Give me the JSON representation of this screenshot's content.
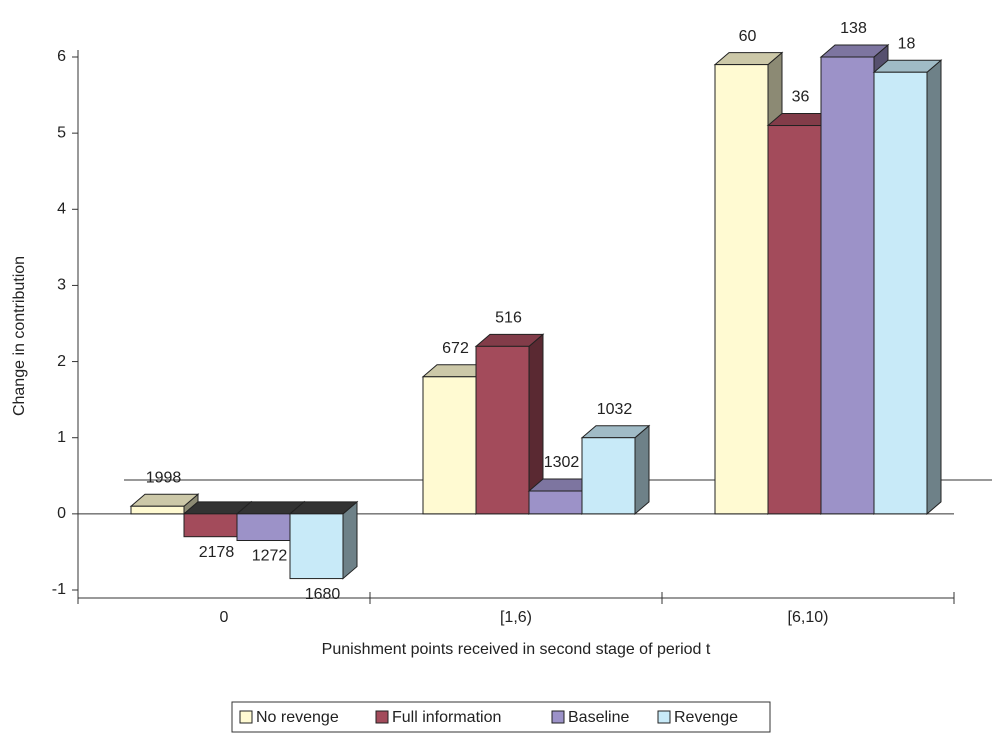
{
  "chart_data": {
    "type": "bar3d",
    "y_label": "Change in contribution",
    "x_label": "Punishment points received in second stage of period t",
    "categories": [
      "0",
      "[1,6)",
      "[6,10)"
    ],
    "series": [
      {
        "name": "No revenge",
        "color": "#fffad2",
        "values": [
          0.1,
          1.8,
          5.9
        ],
        "observations": [
          1998,
          672,
          60
        ]
      },
      {
        "name": "Full information",
        "color": "#a34b5b",
        "values": [
          -0.3,
          2.2,
          5.1
        ],
        "observations": [
          2178,
          516,
          36
        ]
      },
      {
        "name": "Baseline",
        "color": "#9c92c8",
        "values": [
          -0.35,
          0.3,
          6.0
        ],
        "observations": [
          1272,
          1302,
          138
        ]
      },
      {
        "name": "Revenge",
        "color": "#c8eaf8",
        "values": [
          -0.85,
          1.0,
          5.8
        ],
        "observations": [
          1680,
          1032,
          18
        ]
      }
    ],
    "ylim": [
      -1,
      6
    ],
    "yticks": [
      -1,
      0,
      1,
      2,
      3,
      4,
      5,
      6
    ]
  }
}
